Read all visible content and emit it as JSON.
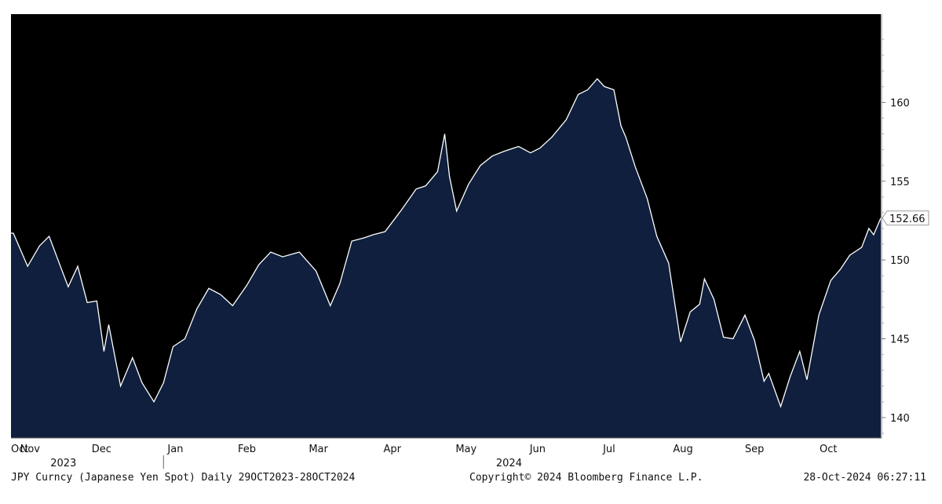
{
  "colors": {
    "background": "#000000",
    "area_fill": "#0f1f3d",
    "line": "#ffffff",
    "axis_text": "#111111"
  },
  "footer": {
    "left": "JPY Curncy (Japanese Yen Spot)  Daily 29OCT2023-28OCT2024",
    "center": "Copyright© 2024 Bloomberg Finance L.P.",
    "right": "28-Oct-2024 06:27:11"
  },
  "chart_data": {
    "type": "area",
    "ylim": [
      138.7,
      165.6
    ],
    "yticks": [
      140,
      145,
      150,
      155,
      160
    ],
    "last_value_label": "152.66",
    "month_labels": [
      "Oct",
      "Nov",
      "Dec",
      "Jan",
      "Feb",
      "Mar",
      "Apr",
      "May",
      "Jun",
      "Jul",
      "Aug",
      "Sep",
      "Oct"
    ],
    "month_positions": [
      "2023-10-30",
      "2023-11-06",
      "2023-12-06",
      "2024-01-06",
      "2024-02-05",
      "2024-03-06",
      "2024-04-06",
      "2024-05-07",
      "2024-06-06",
      "2024-07-06",
      "2024-08-06",
      "2024-09-05",
      "2024-10-06"
    ],
    "year_labels": [
      {
        "label": "2023",
        "date": "2023-11-20"
      },
      {
        "label": "2024",
        "date": "2024-05-25"
      }
    ],
    "year_divider": "2024-01-01",
    "x_range": [
      "2023-10-29",
      "2024-10-28"
    ],
    "x": [
      "2023-10-30",
      "2023-11-05",
      "2023-11-10",
      "2023-11-14",
      "2023-11-19",
      "2023-11-22",
      "2023-11-26",
      "2023-11-30",
      "2023-12-04",
      "2023-12-07",
      "2023-12-09",
      "2023-12-14",
      "2023-12-19",
      "2023-12-23",
      "2023-12-28",
      "2024-01-01",
      "2024-01-05",
      "2024-01-10",
      "2024-01-15",
      "2024-01-20",
      "2024-01-25",
      "2024-01-30",
      "2024-02-05",
      "2024-02-10",
      "2024-02-15",
      "2024-02-20",
      "2024-02-27",
      "2024-03-05",
      "2024-03-11",
      "2024-03-15",
      "2024-03-20",
      "2024-03-25",
      "2024-03-29",
      "2024-04-03",
      "2024-04-10",
      "2024-04-16",
      "2024-04-20",
      "2024-04-25",
      "2024-04-28",
      "2024-04-30",
      "2024-05-03",
      "2024-05-08",
      "2024-05-13",
      "2024-05-18",
      "2024-05-23",
      "2024-05-29",
      "2024-06-03",
      "2024-06-07",
      "2024-06-12",
      "2024-06-18",
      "2024-06-23",
      "2024-06-27",
      "2024-07-01",
      "2024-07-04",
      "2024-07-08",
      "2024-07-11",
      "2024-07-13",
      "2024-07-17",
      "2024-07-22",
      "2024-07-26",
      "2024-07-31",
      "2024-08-05",
      "2024-08-09",
      "2024-08-13",
      "2024-08-15",
      "2024-08-19",
      "2024-08-23",
      "2024-08-27",
      "2024-09-01",
      "2024-09-05",
      "2024-09-09",
      "2024-09-11",
      "2024-09-16",
      "2024-09-20",
      "2024-09-24",
      "2024-09-27",
      "2024-10-02",
      "2024-10-07",
      "2024-10-11",
      "2024-10-15",
      "2024-10-20",
      "2024-10-23",
      "2024-10-25",
      "2024-10-28"
    ],
    "values": [
      151.7,
      149.6,
      150.9,
      151.5,
      149.5,
      148.3,
      149.6,
      147.3,
      147.4,
      144.2,
      145.9,
      142.0,
      143.8,
      142.2,
      141.0,
      142.2,
      144.5,
      145.0,
      146.9,
      148.2,
      147.8,
      147.1,
      148.4,
      149.7,
      150.5,
      150.2,
      150.5,
      149.3,
      147.1,
      148.5,
      151.2,
      151.4,
      151.6,
      151.8,
      153.2,
      154.5,
      154.7,
      155.6,
      158.0,
      155.3,
      153.1,
      154.8,
      156.0,
      156.6,
      156.9,
      157.2,
      156.8,
      157.1,
      157.8,
      158.9,
      160.5,
      160.8,
      161.5,
      161.0,
      160.8,
      158.5,
      157.8,
      155.9,
      153.9,
      151.5,
      149.8,
      144.8,
      146.7,
      147.2,
      148.8,
      147.5,
      145.1,
      145.0,
      146.5,
      144.9,
      142.3,
      142.8,
      140.7,
      142.6,
      144.2,
      142.4,
      146.5,
      148.7,
      149.4,
      150.3,
      150.8,
      152.0,
      151.6,
      152.66
    ]
  }
}
